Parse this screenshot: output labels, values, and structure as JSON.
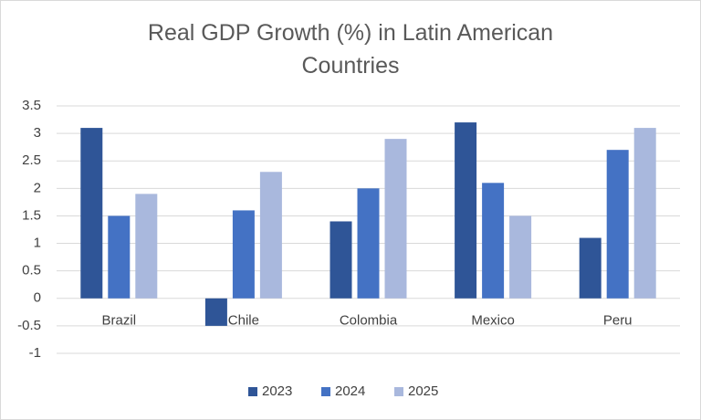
{
  "chart_data": {
    "type": "bar",
    "title": "Real GDP Growth (%)  in Latin American Countries",
    "categories": [
      "Brazil",
      "Chile",
      "Colombia",
      "Mexico",
      "Peru"
    ],
    "series": [
      {
        "name": "2023",
        "color": "#2f5597",
        "values": [
          3.1,
          -0.5,
          1.4,
          3.2,
          1.1
        ]
      },
      {
        "name": "2024",
        "color": "#4472c4",
        "values": [
          1.5,
          1.6,
          2.0,
          2.1,
          2.7
        ]
      },
      {
        "name": "2025",
        "color": "#a9b8dd",
        "values": [
          1.9,
          2.3,
          2.9,
          1.5,
          3.1
        ]
      }
    ],
    "ylim": [
      -1,
      3.5
    ],
    "yticks": [
      -1,
      -0.5,
      0,
      0.5,
      1,
      1.5,
      2,
      2.5,
      3,
      3.5
    ],
    "grid": true,
    "legend": "bottom"
  }
}
